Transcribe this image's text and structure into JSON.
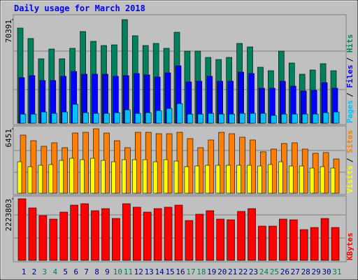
{
  "chart_data": [
    {
      "type": "bar",
      "title": "Daily usage for March 2018",
      "legend_separator": "/",
      "ylim": [
        0,
        70391
      ],
      "yticks": [
        70391
      ],
      "series": [
        {
          "name": "Hits",
          "color": "#00805C",
          "values": [
            64680,
            57550,
            43760,
            50410,
            43760,
            50890,
            62300,
            55640,
            52790,
            53260,
            70391,
            59450,
            52790,
            54220,
            50890,
            61830,
            48990,
            48990,
            44710,
            43280,
            44710,
            54220,
            51840,
            38050,
            35670,
            48990,
            40900,
            33290,
            36150,
            40430,
            35670
          ]
        },
        {
          "name": "Files",
          "color": "#0000FF",
          "values": [
            30910,
            32340,
            29010,
            29010,
            31870,
            35190,
            33290,
            33290,
            33290,
            31870,
            32340,
            33770,
            32820,
            31390,
            34240,
            39000,
            28060,
            28540,
            31870,
            28540,
            28540,
            34720,
            33770,
            23780,
            23780,
            28540,
            25210,
            21880,
            22350,
            27580,
            23780
          ]
        },
        {
          "name": "Pages",
          "color": "#00C0FF",
          "values": [
            6180,
            6180,
            7610,
            6660,
            7610,
            12840,
            7130,
            6660,
            6660,
            7130,
            9040,
            6660,
            7130,
            8560,
            9990,
            13320,
            6180,
            6180,
            6660,
            6180,
            6180,
            6660,
            6660,
            6660,
            5230,
            6180,
            6180,
            6180,
            6180,
            7130,
            7610
          ]
        }
      ]
    },
    {
      "type": "bar",
      "legend_separator": "/",
      "ylim": [
        0,
        6451
      ],
      "yticks": [
        6451
      ],
      "series": [
        {
          "name": "Sites",
          "color": "#FF8000",
          "values": [
            5820,
            5260,
            4700,
            5050,
            4560,
            6030,
            6100,
            6451,
            6030,
            5260,
            4560,
            6100,
            6100,
            5960,
            5960,
            6100,
            5470,
            4560,
            5330,
            6100,
            5960,
            5610,
            5330,
            4140,
            4420,
            4980,
            5050,
            4420,
            4000,
            4070,
            3430
          ]
        },
        {
          "name": "Visits",
          "color": "#FFFF00",
          "values": [
            3150,
            2660,
            2800,
            2870,
            3290,
            3500,
            3360,
            3500,
            3290,
            3150,
            3360,
            3360,
            3360,
            3150,
            3360,
            3220,
            2660,
            2730,
            2800,
            2800,
            2800,
            2800,
            2800,
            2730,
            2870,
            3150,
            2730,
            2730,
            2520,
            2660,
            2520
          ]
        }
      ]
    },
    {
      "type": "bar",
      "ylim": [
        0,
        2223803
      ],
      "yticks": [
        2223803
      ],
      "categories": [
        "1",
        "2",
        "3",
        "4",
        "5",
        "6",
        "7",
        "8",
        "9",
        "10",
        "11",
        "12",
        "13",
        "14",
        "15",
        "16",
        "17",
        "18",
        "19",
        "20",
        "21",
        "22",
        "23",
        "24",
        "25",
        "26",
        "27",
        "28",
        "29",
        "30",
        "31"
      ],
      "category_colors": [
        "#000080",
        "#000080",
        "#00805C",
        "#00805C",
        "#000080",
        "#000080",
        "#000080",
        "#000080",
        "#000080",
        "#00805C",
        "#00805C",
        "#000080",
        "#000080",
        "#000080",
        "#000080",
        "#000080",
        "#00805C",
        "#00805C",
        "#000080",
        "#000080",
        "#000080",
        "#000080",
        "#000080",
        "#00805C",
        "#00805C",
        "#000080",
        "#000080",
        "#000080",
        "#000080",
        "#000080",
        "#00805C"
      ],
      "series": [
        {
          "name": "KBytes",
          "color": "#FF0000",
          "values": [
            2223803,
            1895000,
            1617000,
            1491000,
            1744000,
            1996000,
            2047000,
            1794000,
            1870000,
            1516000,
            2047000,
            1921000,
            1744000,
            1870000,
            1921000,
            1996000,
            1440000,
            1668000,
            1794000,
            1491000,
            1466000,
            1769000,
            1870000,
            1238000,
            1238000,
            1491000,
            1466000,
            1112000,
            1188000,
            1516000,
            1188000
          ]
        }
      ]
    }
  ]
}
